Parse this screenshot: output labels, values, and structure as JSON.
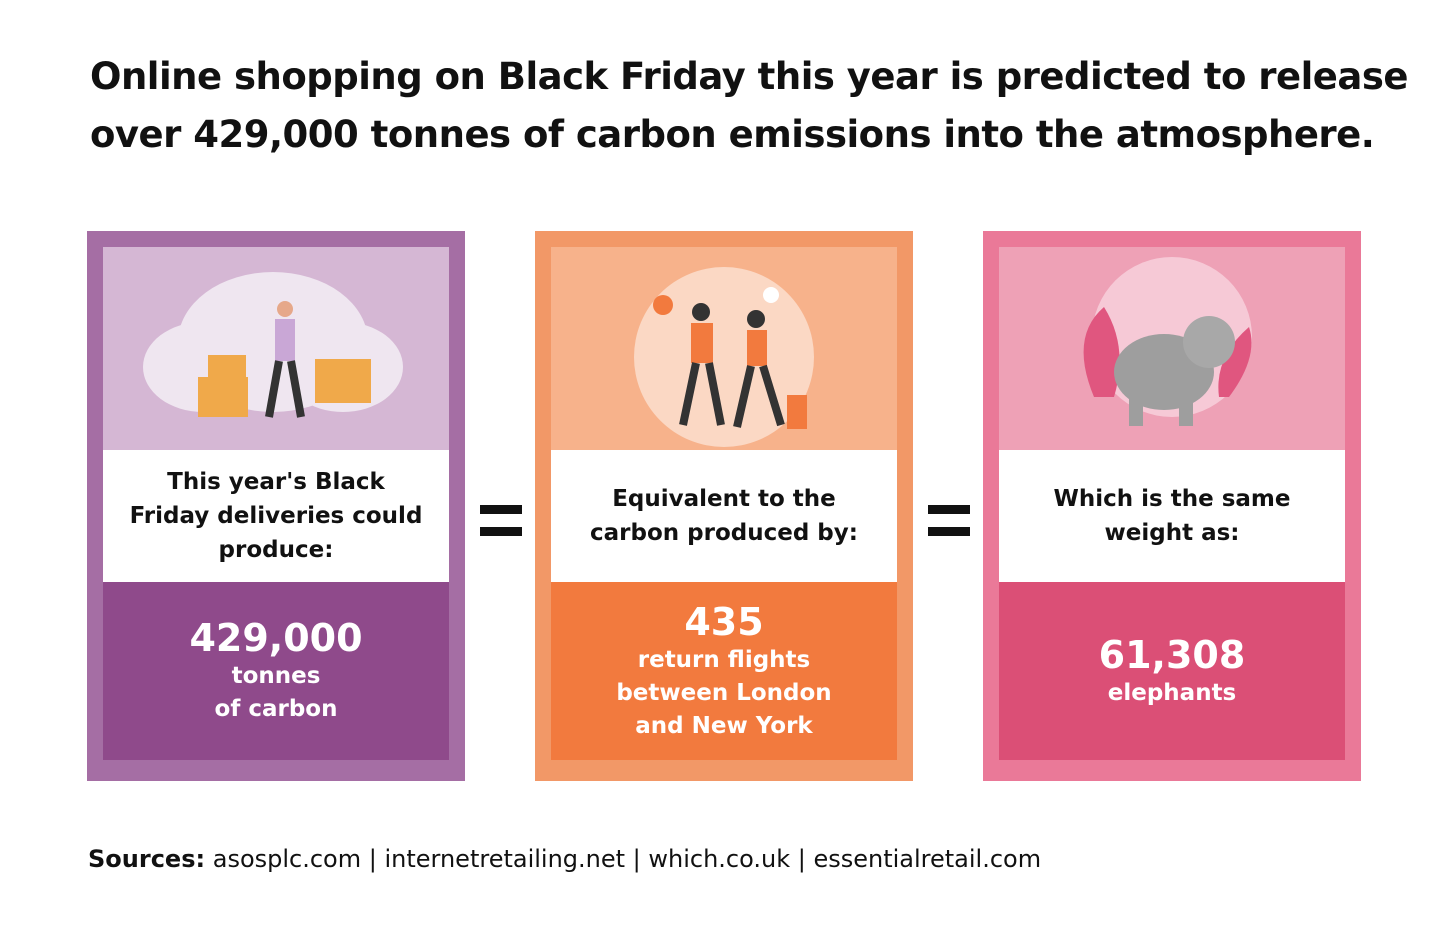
{
  "header": {
    "title_lines": [
      "Online shopping on Black Friday this year is predicted to release",
      "over 429,000 tonnes of carbon emissions into the atmosphere."
    ]
  },
  "cards": [
    {
      "label": "This year's Black Friday deliveries could produce:",
      "value": "429,000",
      "unit_lines": [
        "tonnes",
        "of carbon"
      ]
    },
    {
      "label": "Equivalent to the carbon produced by:",
      "value": "435",
      "unit_lines": [
        "return flights",
        "between London",
        "and New York"
      ]
    },
    {
      "label": "Which is the same weight as:",
      "value": "61,308",
      "unit_lines": [
        "elephants"
      ]
    }
  ],
  "footer": {
    "label": "Sources:",
    "text": "asosplc.com | internetretailing.net | which.co.uk | essentialretail.com"
  }
}
